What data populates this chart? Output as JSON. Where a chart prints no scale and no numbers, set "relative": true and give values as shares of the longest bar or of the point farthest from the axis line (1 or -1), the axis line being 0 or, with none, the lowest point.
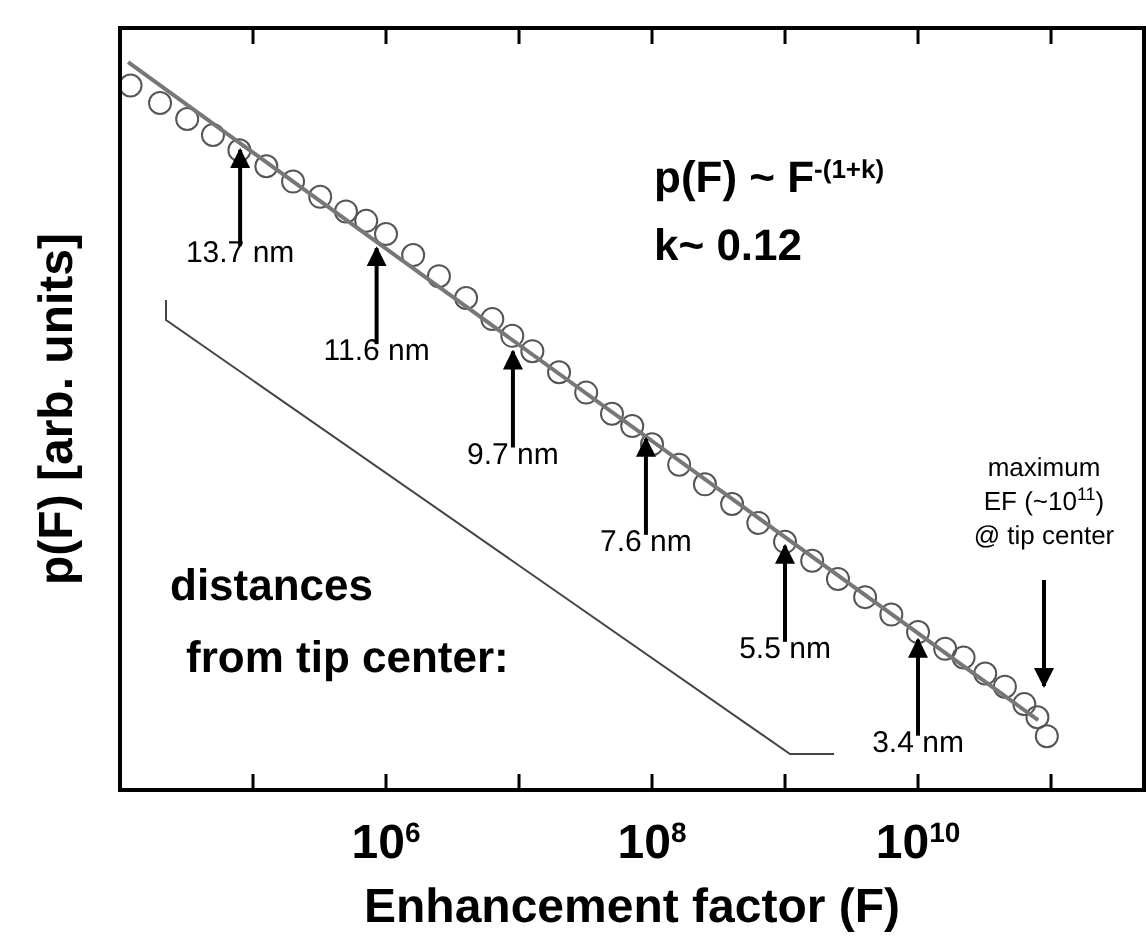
{
  "chart_data": {
    "type": "scatter",
    "xlabel": "Enhancement factor (F)",
    "ylabel": "p(F) [arb. units]",
    "relative": true,
    "log": "x",
    "marker": "circle",
    "tick_labels": "x",
    "grid": false,
    "xlim": [
      10000,
      500000000000
    ],
    "xticks": [
      {
        "value": 100000,
        "label": null
      },
      {
        "value": 1000000,
        "label": "10$^{6}$"
      },
      {
        "value": 10000000,
        "label": null
      },
      {
        "value": 100000000,
        "label": "10$^{8}$"
      },
      {
        "value": 1000000000,
        "label": null
      },
      {
        "value": 10000000000,
        "label": "10$^{10}$"
      },
      {
        "value": 100000000000,
        "label": null
      }
    ],
    "series": [
      {
        "color": "#555555",
        "x": [
          12000,
          20000,
          32000,
          50000,
          79000,
          126000,
          200000,
          320000,
          500000,
          710000,
          1000000,
          1600000,
          2500000,
          4000000,
          6300000,
          8900000,
          12600000,
          20000000,
          32000000,
          50000000,
          71000000,
          100000000,
          160000000,
          250000000,
          400000000,
          630000000,
          1000000000,
          1600000000,
          2500000000,
          4000000000,
          6300000000,
          10000000000,
          16000000000,
          22000000000,
          32000000000,
          45000000000,
          63000000000,
          79000000000,
          93000000000
        ],
        "values": [
          0.968,
          0.944,
          0.922,
          0.9,
          0.879,
          0.857,
          0.836,
          0.815,
          0.795,
          0.782,
          0.764,
          0.735,
          0.706,
          0.676,
          0.647,
          0.624,
          0.603,
          0.574,
          0.546,
          0.517,
          0.5,
          0.475,
          0.447,
          0.42,
          0.393,
          0.367,
          0.341,
          0.315,
          0.29,
          0.265,
          0.241,
          0.217,
          0.194,
          0.182,
          0.16,
          0.142,
          0.118,
          0.1,
          0.074
        ]
      },
      {
        "type": "line",
        "marker": "none",
        "color": "#777777",
        "x": [
          11500,
          80000000000
        ],
        "values": [
          1.0,
          0.096
        ]
      }
    ],
    "annotations": [
      {
        "text": "13.7 nm",
        "x": 80000,
        "y": 0.885
      },
      {
        "text": "11.6 nm",
        "x": 850000,
        "y": 0.75
      },
      {
        "text": "9.7 nm",
        "x": 9000000,
        "y": 0.608
      },
      {
        "text": "7.6 nm",
        "x": 90000000,
        "y": 0.488
      },
      {
        "text": "5.5 nm",
        "x": 1000000000,
        "y": 0.341
      },
      {
        "text": "3.4 nm",
        "x": 10000000000,
        "y": 0.212
      },
      "p(F) ~ F$^{-(1+k)}$",
      "k~ 0.12",
      "distances from tip center:",
      "maximum EF (~10$^{11}$) @ tip center"
    ]
  }
}
